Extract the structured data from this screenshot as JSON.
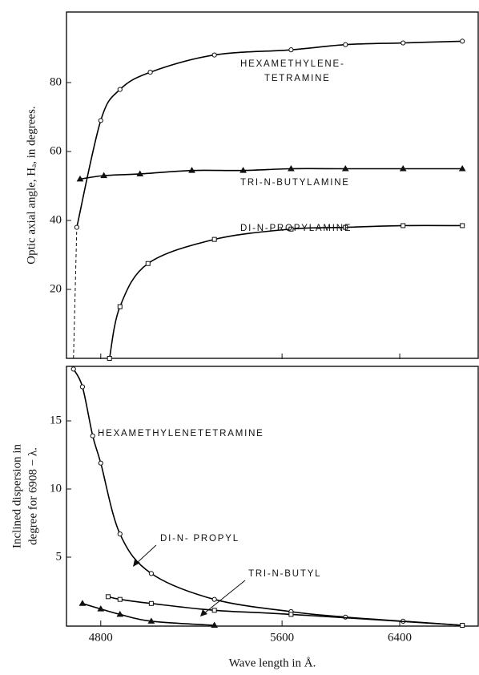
{
  "chart_data": [
    {
      "type": "line",
      "ylabel": "Optic axial angle, Hₐ, in degrees.",
      "xlim": [
        4684,
        7174
      ],
      "xticks": [
        4800,
        5600,
        6400
      ],
      "xscale": "inverse-square",
      "ylim": [
        0,
        100
      ],
      "yticks": [
        20,
        40,
        60,
        80
      ],
      "series": [
        {
          "name": "HEXAMETHYLENE-",
          "name2": "TETRAMINE",
          "color": "#000",
          "marker": "circle",
          "x": [
            4718,
            4800,
            4869,
            4984,
            5257,
            5651,
            5991,
            6428,
            6995
          ],
          "values": [
            38,
            69,
            78,
            83,
            88,
            89.5,
            91,
            91.5,
            92
          ],
          "extrapolated": {
            "x": [
              4707,
              4718
            ],
            "values": [
              0,
              38
            ]
          }
        },
        {
          "name": "TRI-N-BUTYLAMINE",
          "color": "#000",
          "marker": "triangle",
          "x": [
            4729,
            4811,
            4944,
            5156,
            5395,
            5651,
            5991,
            6428,
            6995
          ],
          "values": [
            52,
            53,
            53.5,
            54.5,
            54.5,
            55,
            55,
            55,
            55
          ]
        },
        {
          "name": "DI-N-PROPYLAMINE",
          "color": "#000",
          "marker": "square",
          "x": [
            4831,
            4869,
            4975,
            5257,
            5651,
            5991,
            6428,
            6995
          ],
          "values": [
            0,
            15,
            27.5,
            34.5,
            37.5,
            38,
            38.5,
            38.5
          ]
        }
      ]
    },
    {
      "type": "line",
      "ylabel": "Inclined dispersion in",
      "ylabel2": "degree for 6908 − λ.",
      "xlabel": "Wave length in Å.",
      "xlim": [
        4684,
        7174
      ],
      "xticks": [
        4800,
        5600,
        6400
      ],
      "xscale": "inverse-square",
      "ylim": [
        0,
        19
      ],
      "yticks": [
        5,
        10,
        15
      ],
      "series": [
        {
          "name": "HEXAMETHYLENETETRAMINE",
          "color": "#000",
          "marker": "circle",
          "x": [
            4707,
            4737,
            4772,
            4800,
            4869,
            4988,
            5257,
            5651,
            5991,
            6428,
            6995
          ],
          "values": [
            18.8,
            17.5,
            13.9,
            11.9,
            6.7,
            3.8,
            1.9,
            1,
            0.6,
            0.3,
            0
          ]
        },
        {
          "name": "DI-N- PROPYL",
          "color": "#000",
          "marker": "square",
          "x": [
            4826,
            4869,
            4988,
            5257,
            5651,
            6995
          ],
          "values": [
            2.1,
            1.9,
            1.6,
            1.1,
            0.8,
            0
          ]
        },
        {
          "name": "TRI-N-BUTYL",
          "color": "#000",
          "marker": "triangle",
          "x": [
            4737,
            4800,
            4869,
            4988,
            5257
          ],
          "values": [
            1.6,
            1.2,
            0.8,
            0.3,
            0
          ]
        }
      ]
    }
  ]
}
